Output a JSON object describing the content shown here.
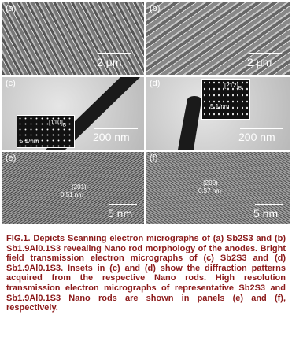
{
  "figure": {
    "panels": [
      {
        "label": "(a)",
        "scale_bar": "2 μm"
      },
      {
        "label": "(b)",
        "scale_bar": "2 μm"
      },
      {
        "label": "(c)",
        "scale_bar": "200 nm",
        "inset": {
          "zone_axis": "[1̄10]",
          "zone_sub": "B",
          "scale": "5 1/nm"
        }
      },
      {
        "label": "(d)",
        "scale_bar": "200 nm",
        "inset": {
          "zone_axis": "[2̄12]",
          "zone_sub": "B",
          "scale": "5 1/nm"
        }
      },
      {
        "label": "(e)",
        "scale_bar": "5 nm",
        "plane": "(201)",
        "spacing": "0.51 nm"
      },
      {
        "label": "(f)",
        "scale_bar": "5 nm",
        "plane": "(200)",
        "spacing": "0.57 nm"
      }
    ],
    "caption": "FIG.1. Depicts Scanning electron micrographs of (a) Sb2S3 and (b) Sb1.9Al0.1S3 revealing Nano rod morphology of the anodes. Bright field transmission electron micrographs of (c) Sb2S3 and (d) Sb1.9Al0.1S3. Insets in (c) and (d) show the diffraction patterns acquired from the respective Nano rods. High resolution transmission electron micrographs of representative Sb2S3 and Sb1.9Al0.1S3 Nano rods are shown in panels (e) and (f), respectively."
  }
}
